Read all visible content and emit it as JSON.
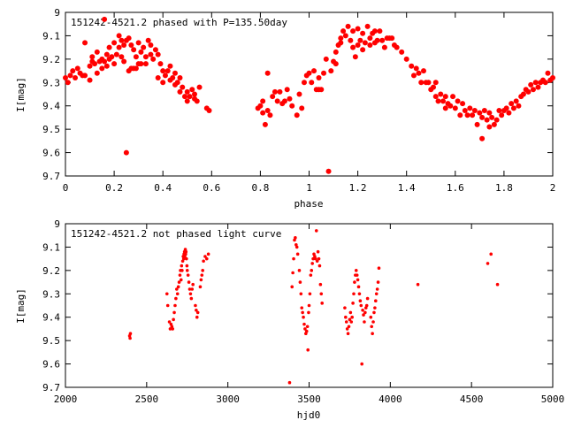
{
  "chart_data": [
    {
      "type": "scatter",
      "title": "151242-4521.2 phased with P=135.50day",
      "xlabel": "phase",
      "ylabel": "I[mag]",
      "xlim": [
        0,
        2
      ],
      "ylim": [
        9.0,
        9.7
      ],
      "y_inverted": true,
      "grid": false,
      "x_ticks": [
        "0",
        "0.2",
        "0.4",
        "0.6",
        "0.8",
        "1",
        "1.2",
        "1.4",
        "1.6",
        "1.8",
        "2"
      ],
      "y_ticks": [
        "9",
        "9.1",
        "9.2",
        "9.3",
        "9.4",
        "9.5",
        "9.6",
        "9.7"
      ],
      "marker_color": "#ff0000",
      "points": [
        [
          0.0,
          9.28
        ],
        [
          0.01,
          9.3
        ],
        [
          0.02,
          9.27
        ],
        [
          0.03,
          9.25
        ],
        [
          0.04,
          9.28
        ],
        [
          0.05,
          9.24
        ],
        [
          0.06,
          9.26
        ],
        [
          0.07,
          9.27
        ],
        [
          0.08,
          9.13
        ],
        [
          0.08,
          9.27
        ],
        [
          0.1,
          9.23
        ],
        [
          0.1,
          9.29
        ],
        [
          0.11,
          9.21
        ],
        [
          0.11,
          9.19
        ],
        [
          0.12,
          9.22
        ],
        [
          0.13,
          9.26
        ],
        [
          0.13,
          9.17
        ],
        [
          0.14,
          9.21
        ],
        [
          0.15,
          9.2
        ],
        [
          0.15,
          9.24
        ],
        [
          0.16,
          9.21
        ],
        [
          0.16,
          9.03
        ],
        [
          0.17,
          9.18
        ],
        [
          0.17,
          9.23
        ],
        [
          0.18,
          9.15
        ],
        [
          0.18,
          9.2
        ],
        [
          0.19,
          9.19
        ],
        [
          0.2,
          9.22
        ],
        [
          0.2,
          9.13
        ],
        [
          0.21,
          9.18
        ],
        [
          0.22,
          9.1
        ],
        [
          0.22,
          9.15
        ],
        [
          0.23,
          9.12
        ],
        [
          0.23,
          9.19
        ],
        [
          0.24,
          9.14
        ],
        [
          0.24,
          9.21
        ],
        [
          0.25,
          9.12
        ],
        [
          0.25,
          9.6
        ],
        [
          0.26,
          9.11
        ],
        [
          0.26,
          9.25
        ],
        [
          0.27,
          9.14
        ],
        [
          0.27,
          9.24
        ],
        [
          0.28,
          9.16
        ],
        [
          0.28,
          9.24
        ],
        [
          0.29,
          9.19
        ],
        [
          0.29,
          9.24
        ],
        [
          0.3,
          9.13
        ],
        [
          0.3,
          9.22
        ],
        [
          0.31,
          9.17
        ],
        [
          0.31,
          9.22
        ],
        [
          0.32,
          9.15
        ],
        [
          0.33,
          9.19
        ],
        [
          0.33,
          9.22
        ],
        [
          0.34,
          9.12
        ],
        [
          0.35,
          9.18
        ],
        [
          0.35,
          9.14
        ],
        [
          0.36,
          9.2
        ],
        [
          0.37,
          9.16
        ],
        [
          0.38,
          9.18
        ],
        [
          0.38,
          9.28
        ],
        [
          0.39,
          9.22
        ],
        [
          0.4,
          9.3
        ],
        [
          0.4,
          9.25
        ],
        [
          0.41,
          9.27
        ],
        [
          0.42,
          9.25
        ],
        [
          0.43,
          9.29
        ],
        [
          0.43,
          9.23
        ],
        [
          0.44,
          9.28
        ],
        [
          0.45,
          9.31
        ],
        [
          0.45,
          9.26
        ],
        [
          0.46,
          9.3
        ],
        [
          0.47,
          9.34
        ],
        [
          0.47,
          9.28
        ],
        [
          0.48,
          9.32
        ],
        [
          0.49,
          9.36
        ],
        [
          0.5,
          9.34
        ],
        [
          0.5,
          9.38
        ],
        [
          0.51,
          9.36
        ],
        [
          0.52,
          9.33
        ],
        [
          0.53,
          9.37
        ],
        [
          0.53,
          9.35
        ],
        [
          0.54,
          9.38
        ],
        [
          0.55,
          9.32
        ],
        [
          0.58,
          9.41
        ],
        [
          0.59,
          9.42
        ],
        [
          0.79,
          9.41
        ],
        [
          0.8,
          9.4
        ],
        [
          0.81,
          9.43
        ],
        [
          0.81,
          9.38
        ],
        [
          0.82,
          9.48
        ],
        [
          0.83,
          9.26
        ],
        [
          0.83,
          9.42
        ],
        [
          0.84,
          9.44
        ],
        [
          0.85,
          9.36
        ],
        [
          0.86,
          9.34
        ],
        [
          0.87,
          9.38
        ],
        [
          0.88,
          9.34
        ],
        [
          0.89,
          9.39
        ],
        [
          0.9,
          9.38
        ],
        [
          0.91,
          9.33
        ],
        [
          0.92,
          9.37
        ],
        [
          0.93,
          9.4
        ],
        [
          0.95,
          9.44
        ],
        [
          0.96,
          9.35
        ],
        [
          0.97,
          9.41
        ],
        [
          0.98,
          9.3
        ],
        [
          0.99,
          9.27
        ],
        [
          1.0,
          9.26
        ],
        [
          1.01,
          9.3
        ],
        [
          1.02,
          9.25
        ],
        [
          1.03,
          9.33
        ],
        [
          1.04,
          9.28
        ],
        [
          1.04,
          9.33
        ],
        [
          1.05,
          9.33
        ],
        [
          1.06,
          9.26
        ],
        [
          1.07,
          9.2
        ],
        [
          1.08,
          9.68
        ],
        [
          1.09,
          9.25
        ],
        [
          1.1,
          9.21
        ],
        [
          1.11,
          9.17
        ],
        [
          1.11,
          9.22
        ],
        [
          1.12,
          9.14
        ],
        [
          1.13,
          9.13
        ],
        [
          1.13,
          9.11
        ],
        [
          1.14,
          9.08
        ],
        [
          1.15,
          9.1
        ],
        [
          1.16,
          9.06
        ],
        [
          1.17,
          9.12
        ],
        [
          1.18,
          9.15
        ],
        [
          1.18,
          9.08
        ],
        [
          1.19,
          9.19
        ],
        [
          1.2,
          9.14
        ],
        [
          1.2,
          9.07
        ],
        [
          1.21,
          9.12
        ],
        [
          1.22,
          9.16
        ],
        [
          1.22,
          9.09
        ],
        [
          1.23,
          9.13
        ],
        [
          1.24,
          9.06
        ],
        [
          1.25,
          9.14
        ],
        [
          1.25,
          9.11
        ],
        [
          1.26,
          9.09
        ],
        [
          1.27,
          9.13
        ],
        [
          1.27,
          9.08
        ],
        [
          1.28,
          9.12
        ],
        [
          1.29,
          9.08
        ],
        [
          1.3,
          9.12
        ],
        [
          1.31,
          9.15
        ],
        [
          1.32,
          9.11
        ],
        [
          1.33,
          9.11
        ],
        [
          1.34,
          9.11
        ],
        [
          1.35,
          9.14
        ],
        [
          1.36,
          9.15
        ],
        [
          1.38,
          9.17
        ],
        [
          1.4,
          9.2
        ],
        [
          1.42,
          9.23
        ],
        [
          1.43,
          9.27
        ],
        [
          1.44,
          9.24
        ],
        [
          1.45,
          9.26
        ],
        [
          1.46,
          9.3
        ],
        [
          1.47,
          9.25
        ],
        [
          1.48,
          9.3
        ],
        [
          1.49,
          9.3
        ],
        [
          1.5,
          9.33
        ],
        [
          1.51,
          9.32
        ],
        [
          1.52,
          9.36
        ],
        [
          1.52,
          9.3
        ],
        [
          1.53,
          9.38
        ],
        [
          1.54,
          9.35
        ],
        [
          1.55,
          9.38
        ],
        [
          1.56,
          9.41
        ],
        [
          1.56,
          9.36
        ],
        [
          1.57,
          9.39
        ],
        [
          1.58,
          9.4
        ],
        [
          1.59,
          9.36
        ],
        [
          1.6,
          9.41
        ],
        [
          1.61,
          9.38
        ],
        [
          1.62,
          9.44
        ],
        [
          1.63,
          9.39
        ],
        [
          1.64,
          9.42
        ],
        [
          1.65,
          9.44
        ],
        [
          1.66,
          9.41
        ],
        [
          1.67,
          9.44
        ],
        [
          1.68,
          9.42
        ],
        [
          1.69,
          9.48
        ],
        [
          1.7,
          9.43
        ],
        [
          1.71,
          9.54
        ],
        [
          1.71,
          9.45
        ],
        [
          1.72,
          9.42
        ],
        [
          1.73,
          9.46
        ],
        [
          1.74,
          9.49
        ],
        [
          1.74,
          9.43
        ],
        [
          1.75,
          9.45
        ],
        [
          1.76,
          9.48
        ],
        [
          1.77,
          9.46
        ],
        [
          1.78,
          9.42
        ],
        [
          1.79,
          9.44
        ],
        [
          1.8,
          9.42
        ],
        [
          1.81,
          9.41
        ],
        [
          1.82,
          9.43
        ],
        [
          1.83,
          9.39
        ],
        [
          1.84,
          9.41
        ],
        [
          1.85,
          9.38
        ],
        [
          1.86,
          9.4
        ],
        [
          1.87,
          9.36
        ],
        [
          1.88,
          9.35
        ],
        [
          1.89,
          9.33
        ],
        [
          1.9,
          9.34
        ],
        [
          1.91,
          9.31
        ],
        [
          1.92,
          9.33
        ],
        [
          1.93,
          9.3
        ],
        [
          1.94,
          9.32
        ],
        [
          1.95,
          9.3
        ],
        [
          1.96,
          9.29
        ],
        [
          1.97,
          9.3
        ],
        [
          1.98,
          9.26
        ],
        [
          1.99,
          9.29
        ],
        [
          2.0,
          9.28
        ]
      ]
    },
    {
      "type": "scatter",
      "title": "151242-4521.2 not phased light curve",
      "xlabel": "hjd0",
      "ylabel": "I[mag]",
      "xlim": [
        2000,
        5000
      ],
      "ylim": [
        9.0,
        9.7
      ],
      "y_inverted": true,
      "grid": false,
      "x_ticks": [
        "2000",
        "2500",
        "3000",
        "3500",
        "4000",
        "4500",
        "5000"
      ],
      "y_ticks": [
        "9",
        "9.1",
        "9.2",
        "9.3",
        "9.4",
        "9.5",
        "9.6",
        "9.7"
      ],
      "marker_color": "#ff0000",
      "points": [
        [
          2395,
          9.48
        ],
        [
          2398,
          9.49
        ],
        [
          2400,
          9.47
        ],
        [
          2625,
          9.3
        ],
        [
          2630,
          9.35
        ],
        [
          2640,
          9.42
        ],
        [
          2645,
          9.45
        ],
        [
          2650,
          9.43
        ],
        [
          2655,
          9.44
        ],
        [
          2660,
          9.45
        ],
        [
          2665,
          9.41
        ],
        [
          2670,
          9.38
        ],
        [
          2675,
          9.35
        ],
        [
          2680,
          9.32
        ],
        [
          2685,
          9.28
        ],
        [
          2690,
          9.3
        ],
        [
          2695,
          9.27
        ],
        [
          2700,
          9.25
        ],
        [
          2705,
          9.22
        ],
        [
          2708,
          9.2
        ],
        [
          2712,
          9.24
        ],
        [
          2715,
          9.18
        ],
        [
          2718,
          9.2
        ],
        [
          2722,
          9.16
        ],
        [
          2725,
          9.14
        ],
        [
          2728,
          9.15
        ],
        [
          2730,
          9.13
        ],
        [
          2733,
          9.12
        ],
        [
          2735,
          9.14
        ],
        [
          2738,
          9.11
        ],
        [
          2740,
          9.13
        ],
        [
          2742,
          9.12
        ],
        [
          2745,
          9.15
        ],
        [
          2748,
          9.18
        ],
        [
          2750,
          9.2
        ],
        [
          2755,
          9.22
        ],
        [
          2760,
          9.25
        ],
        [
          2765,
          9.28
        ],
        [
          2770,
          9.3
        ],
        [
          2775,
          9.32
        ],
        [
          2780,
          9.28
        ],
        [
          2785,
          9.26
        ],
        [
          2800,
          9.35
        ],
        [
          2805,
          9.37
        ],
        [
          2810,
          9.4
        ],
        [
          2815,
          9.38
        ],
        [
          2830,
          9.27
        ],
        [
          2835,
          9.24
        ],
        [
          2840,
          9.22
        ],
        [
          2845,
          9.2
        ],
        [
          2850,
          9.16
        ],
        [
          2860,
          9.14
        ],
        [
          2870,
          9.15
        ],
        [
          2880,
          9.13
        ],
        [
          3380,
          9.68
        ],
        [
          3395,
          9.27
        ],
        [
          3400,
          9.21
        ],
        [
          3405,
          9.15
        ],
        [
          3410,
          9.07
        ],
        [
          3415,
          9.06
        ],
        [
          3420,
          9.09
        ],
        [
          3425,
          9.1
        ],
        [
          3430,
          9.13
        ],
        [
          3440,
          9.2
        ],
        [
          3445,
          9.25
        ],
        [
          3450,
          9.3
        ],
        [
          3455,
          9.36
        ],
        [
          3460,
          9.38
        ],
        [
          3465,
          9.4
        ],
        [
          3470,
          9.43
        ],
        [
          3475,
          9.45
        ],
        [
          3480,
          9.47
        ],
        [
          3485,
          9.46
        ],
        [
          3490,
          9.44
        ],
        [
          3493,
          9.54
        ],
        [
          3497,
          9.38
        ],
        [
          3500,
          9.35
        ],
        [
          3505,
          9.3
        ],
        [
          3510,
          9.22
        ],
        [
          3515,
          9.2
        ],
        [
          3520,
          9.17
        ],
        [
          3525,
          9.15
        ],
        [
          3530,
          9.13
        ],
        [
          3535,
          9.14
        ],
        [
          3540,
          9.15
        ],
        [
          3545,
          9.03
        ],
        [
          3550,
          9.16
        ],
        [
          3555,
          9.12
        ],
        [
          3560,
          9.15
        ],
        [
          3565,
          9.18
        ],
        [
          3570,
          9.26
        ],
        [
          3575,
          9.3
        ],
        [
          3580,
          9.34
        ],
        [
          3720,
          9.36
        ],
        [
          3725,
          9.4
        ],
        [
          3730,
          9.42
        ],
        [
          3735,
          9.45
        ],
        [
          3740,
          9.47
        ],
        [
          3745,
          9.44
        ],
        [
          3750,
          9.41
        ],
        [
          3755,
          9.38
        ],
        [
          3760,
          9.42
        ],
        [
          3765,
          9.4
        ],
        [
          3770,
          9.34
        ],
        [
          3775,
          9.3
        ],
        [
          3780,
          9.25
        ],
        [
          3785,
          9.22
        ],
        [
          3790,
          9.2
        ],
        [
          3795,
          9.22
        ],
        [
          3800,
          9.24
        ],
        [
          3805,
          9.27
        ],
        [
          3810,
          9.3
        ],
        [
          3815,
          9.33
        ],
        [
          3820,
          9.35
        ],
        [
          3825,
          9.6
        ],
        [
          3830,
          9.37
        ],
        [
          3835,
          9.39
        ],
        [
          3840,
          9.42
        ],
        [
          3845,
          9.38
        ],
        [
          3850,
          9.36
        ],
        [
          3855,
          9.35
        ],
        [
          3860,
          9.32
        ],
        [
          3880,
          9.4
        ],
        [
          3885,
          9.44
        ],
        [
          3890,
          9.47
        ],
        [
          3895,
          9.42
        ],
        [
          3900,
          9.38
        ],
        [
          3905,
          9.36
        ],
        [
          3910,
          9.33
        ],
        [
          3915,
          9.3
        ],
        [
          3920,
          9.28
        ],
        [
          3925,
          9.25
        ],
        [
          3930,
          9.19
        ],
        [
          4170,
          9.26
        ],
        [
          4600,
          9.17
        ],
        [
          4620,
          9.13
        ],
        [
          4660,
          9.26
        ]
      ]
    }
  ]
}
